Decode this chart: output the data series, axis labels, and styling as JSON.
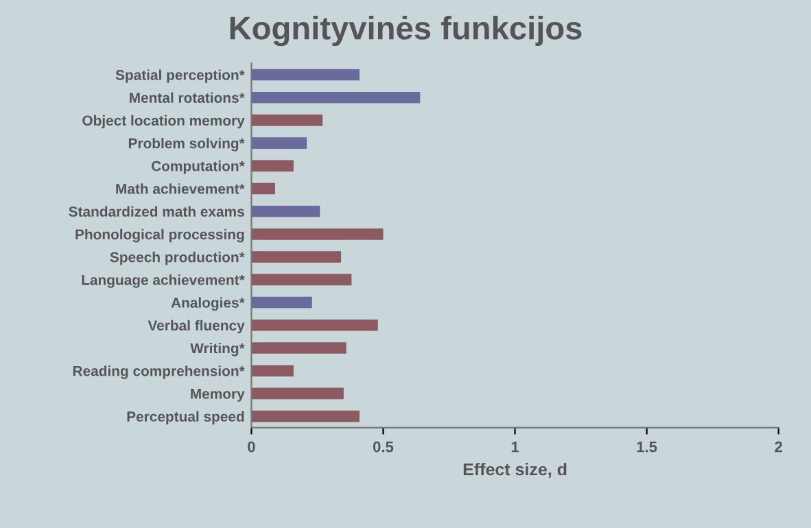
{
  "chart_data": {
    "type": "bar",
    "orientation": "horizontal",
    "title": "Kognityvinės funkcijos",
    "xlabel": "Effect size, d",
    "categories": [
      "Spatial perception*",
      "Mental rotations*",
      "Object location memory",
      "Problem solving*",
      "Computation*",
      "Math achievement*",
      "Standardized math exams",
      "Phonological processing",
      "Speech production*",
      "Language achievement*",
      "Analogies*",
      "Verbal fluency",
      "Writing*",
      "Reading comprehension*",
      "Memory",
      "Perceptual speed"
    ],
    "values": [
      0.41,
      0.64,
      0.27,
      0.21,
      0.16,
      0.09,
      0.26,
      0.5,
      0.34,
      0.38,
      0.23,
      0.48,
      0.36,
      0.16,
      0.35,
      0.41
    ],
    "colors": [
      "#6b6a9c",
      "#6b6a9c",
      "#8c5b62",
      "#6b6a9c",
      "#8c5b62",
      "#8c5b62",
      "#6b6a9c",
      "#8c5b62",
      "#8c5b62",
      "#8c5b62",
      "#6b6a9c",
      "#8c5b62",
      "#8c5b62",
      "#8c5b62",
      "#8c5b62",
      "#8c5b62"
    ],
    "xlim": [
      0,
      2
    ],
    "xticks": [
      0,
      0.5,
      1,
      1.5,
      2
    ],
    "grid": false,
    "legend": false
  }
}
